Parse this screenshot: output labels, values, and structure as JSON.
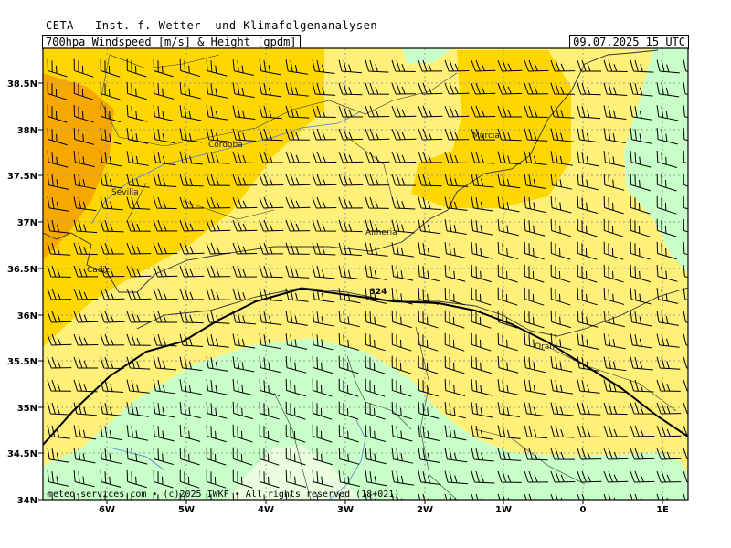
{
  "header": {
    "title": "CETA — Inst. f. Wetter- und Klimafolgenanalysen —",
    "parameter": "700hpa Windspeed [m/s] & Height [gpdm]",
    "valid_time": "09.07.2025 15 UTC"
  },
  "axes": {
    "lat_labels": [
      "38.5N",
      "38N",
      "37.5N",
      "37N",
      "36.5N",
      "36N",
      "35.5N",
      "35N",
      "34.5N",
      "34N"
    ],
    "lon_labels": [
      "6W",
      "5W",
      "4W",
      "3W",
      "2W",
      "1W",
      "0",
      "1E"
    ]
  },
  "cities": [
    "Cordoba",
    "Sevilla",
    "Cadiz",
    "Murcia",
    "Almeria",
    "Oran"
  ],
  "contour": {
    "label": "324"
  },
  "credit": "meteo-services.com • (c)2025 IWKF • All rights reserved (18+021)",
  "colors": {
    "orange": "#f7a800",
    "gold": "#ffd700",
    "yellow": "#fff07a",
    "light_green": "#c8ffc8",
    "pale_green": "#e9ffe0",
    "grid": "#9e9e9e",
    "coast": "#333333",
    "river": "#4a7fd4"
  }
}
